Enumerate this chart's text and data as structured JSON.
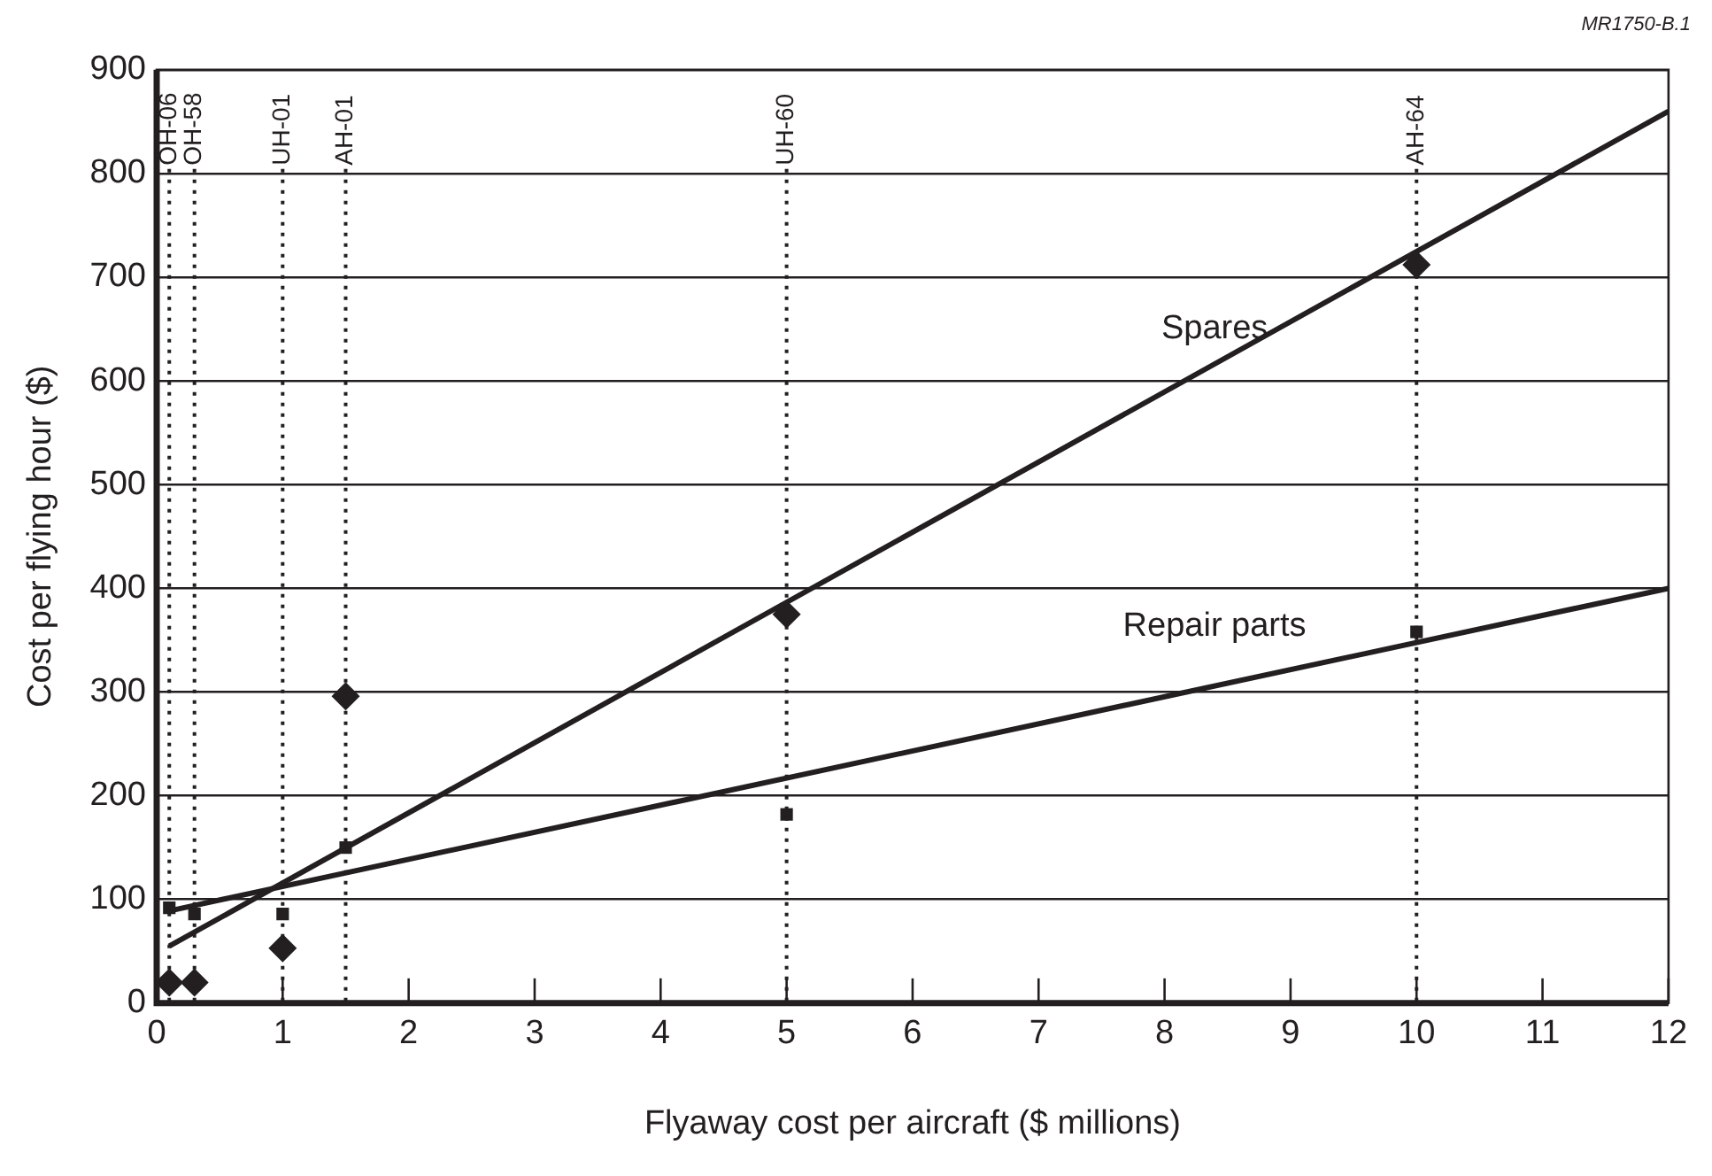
{
  "chart_data": {
    "type": "scatter",
    "xlabel": "Flyaway cost per aircraft ($ millions)",
    "ylabel": "Cost per flying hour ($)",
    "annotations": [
      "MR1750-B.1"
    ],
    "xlim": [
      0,
      12
    ],
    "xticks": [
      0,
      1,
      2,
      3,
      4,
      5,
      6,
      7,
      8,
      9,
      10,
      11,
      12
    ],
    "ylim": [
      0,
      900
    ],
    "yticks": [
      0,
      100,
      200,
      300,
      400,
      500,
      600,
      700,
      800,
      900
    ],
    "grid": "y",
    "legend": false,
    "series": [
      {
        "type": "scatter",
        "marker": "diamond",
        "color": "#231f20",
        "x": [
          0.1,
          0.3,
          1,
          1.5,
          5,
          10
        ],
        "values": [
          20,
          20,
          53,
          296,
          375,
          712
        ]
      },
      {
        "type": "scatter",
        "marker": "square",
        "color": "#231f20",
        "x": [
          0.1,
          0.3,
          1,
          1.5,
          5,
          10
        ],
        "values": [
          92,
          86,
          86,
          150,
          182,
          358
        ]
      },
      {
        "type": "line",
        "name": "Spares",
        "marker": "none",
        "line_style": "solid",
        "color": "#231f20",
        "x": [
          0.1,
          12
        ],
        "values": [
          55,
          860
        ]
      },
      {
        "type": "line",
        "name": "Repair parts",
        "marker": "none",
        "line_style": "solid",
        "color": "#231f20",
        "x": [
          0.1,
          12
        ],
        "values": [
          89,
          400
        ]
      }
    ],
    "ref_lines": [
      {
        "axis": "x",
        "value": 0.1,
        "label": "OH-06",
        "color": "#231f20",
        "line_style": "dotted"
      },
      {
        "axis": "x",
        "value": 0.3,
        "label": "OH-58",
        "color": "#231f20",
        "line_style": "dotted"
      },
      {
        "axis": "x",
        "value": 1,
        "label": "UH-01",
        "color": "#231f20",
        "line_style": "dotted"
      },
      {
        "axis": "x",
        "value": 1.5,
        "label": "AH-01",
        "color": "#231f20",
        "line_style": "dotted"
      },
      {
        "axis": "x",
        "value": 5,
        "label": "UH-60",
        "color": "#231f20",
        "line_style": "dotted"
      },
      {
        "axis": "x",
        "value": 10,
        "label": "AH-64",
        "color": "#231f20",
        "line_style": "dotted"
      }
    ]
  }
}
